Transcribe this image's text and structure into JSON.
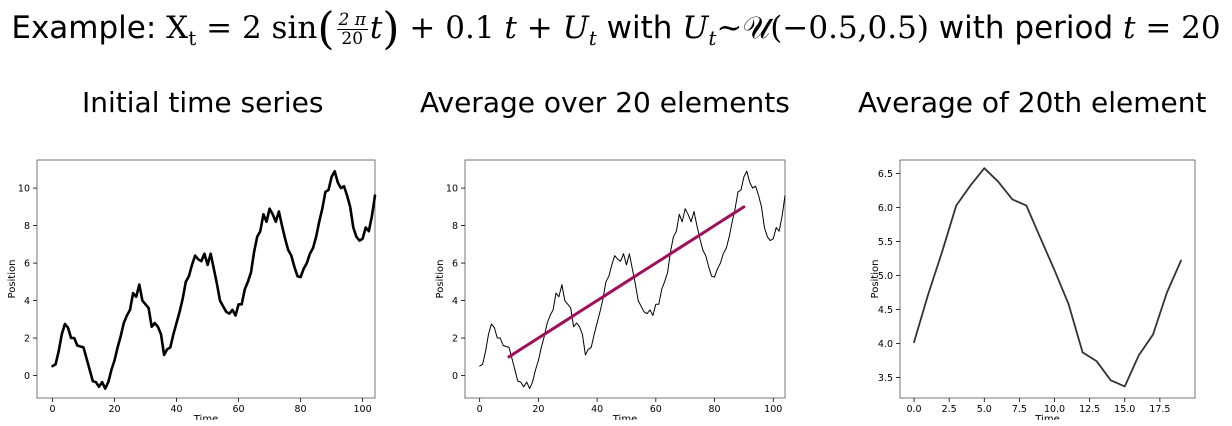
{
  "header": {
    "prefix": "Example: ",
    "xt": "X",
    "xt_sub": "t",
    "eq1": " = 2 sin",
    "frac_num": "2 π",
    "frac_den": "20",
    "t_in_paren": "t",
    "plus": " + 0.1 ",
    "t2": "t",
    "plus2": " + ",
    "u": "U",
    "u_sub": "t",
    "with1": " with ",
    "u2": "U",
    "u2_sub": "t",
    "dist": "~𝒰(−0.5,0.5)",
    "with2": " with period ",
    "t3": "t",
    "eq2": " = 20"
  },
  "panels": [
    {
      "title": "Initial time series"
    },
    {
      "title": "Average over 20 elements"
    },
    {
      "title": "Average of 20th element"
    }
  ],
  "colors": {
    "series": "#000000",
    "moving_average": "#a0105a",
    "avg20": "#333333",
    "axes": "#000000"
  },
  "chart_data": [
    {
      "type": "line",
      "xlabel": "Time",
      "ylabel": "Position",
      "xlim": [
        -5,
        104
      ],
      "ylim": [
        -1.2,
        11.5
      ],
      "xticks": [
        0,
        20,
        40,
        60,
        80,
        100
      ],
      "yticks": [
        0,
        2,
        4,
        6,
        8,
        10
      ],
      "series": [
        {
          "values": [
            0.5,
            0.6,
            1.3,
            2.2,
            2.75,
            2.55,
            2.0,
            2.0,
            1.6,
            1.55,
            1.5,
            0.9,
            0.3,
            -0.3,
            -0.35,
            -0.6,
            -0.35,
            -0.7,
            -0.35,
            0.3,
            0.8,
            1.5,
            2.1,
            2.8,
            3.2,
            3.5,
            4.4,
            4.2,
            4.85,
            4.0,
            3.8,
            3.6,
            2.6,
            2.8,
            2.6,
            2.2,
            1.1,
            1.4,
            1.5,
            2.2,
            2.8,
            3.4,
            4.1,
            5.0,
            5.3,
            5.9,
            6.4,
            6.2,
            6.1,
            6.5,
            5.9,
            6.5,
            5.7,
            4.9,
            4.0,
            3.7,
            3.4,
            3.3,
            3.5,
            3.2,
            3.8,
            3.8,
            4.6,
            5.0,
            5.5,
            6.6,
            7.4,
            7.7,
            8.6,
            8.2,
            8.9,
            8.6,
            8.2,
            8.75,
            8.0,
            7.3,
            6.7,
            6.4,
            5.8,
            5.3,
            5.25,
            5.7,
            6.0,
            6.5,
            6.8,
            7.4,
            8.2,
            8.9,
            9.8,
            9.9,
            10.6,
            10.9,
            10.3,
            10.0,
            10.1,
            9.6,
            9.0,
            7.9,
            7.4,
            7.2,
            7.3,
            7.9,
            7.7,
            8.5,
            9.6
          ]
        }
      ]
    },
    {
      "type": "line",
      "xlabel": "Time",
      "ylabel": "Position",
      "xlim": [
        -5,
        104
      ],
      "ylim": [
        -1.2,
        11.5
      ],
      "xticks": [
        0,
        20,
        40,
        60,
        80,
        100
      ],
      "yticks": [
        0,
        2,
        4,
        6,
        8,
        10
      ],
      "series": [
        {
          "values": [
            0.5,
            0.6,
            1.3,
            2.2,
            2.75,
            2.55,
            2.0,
            2.0,
            1.6,
            1.55,
            1.5,
            0.9,
            0.3,
            -0.3,
            -0.35,
            -0.6,
            -0.35,
            -0.7,
            -0.35,
            0.3,
            0.8,
            1.5,
            2.1,
            2.8,
            3.2,
            3.5,
            4.4,
            4.2,
            4.85,
            4.0,
            3.8,
            3.6,
            2.6,
            2.8,
            2.6,
            2.2,
            1.1,
            1.4,
            1.5,
            2.2,
            2.8,
            3.4,
            4.1,
            5.0,
            5.3,
            5.9,
            6.4,
            6.2,
            6.1,
            6.5,
            5.9,
            6.5,
            5.7,
            4.9,
            4.0,
            3.7,
            3.4,
            3.3,
            3.5,
            3.2,
            3.8,
            3.8,
            4.6,
            5.0,
            5.5,
            6.6,
            7.4,
            7.7,
            8.6,
            8.2,
            8.9,
            8.6,
            8.2,
            8.75,
            8.0,
            7.3,
            6.7,
            6.4,
            5.8,
            5.3,
            5.25,
            5.7,
            6.0,
            6.5,
            6.8,
            7.4,
            8.2,
            8.9,
            9.8,
            9.9,
            10.6,
            10.9,
            10.3,
            10.0,
            10.1,
            9.6,
            9.0,
            7.9,
            7.4,
            7.2,
            7.3,
            7.9,
            7.7,
            8.5,
            9.6
          ]
        },
        {
          "x": [
            10,
            15,
            20,
            25,
            30,
            35,
            40,
            45,
            50,
            55,
            60,
            65,
            70,
            75,
            80,
            85,
            90
          ],
          "values": [
            1.0,
            1.5,
            2.0,
            2.5,
            3.0,
            3.5,
            4.0,
            4.5,
            5.0,
            5.5,
            6.0,
            6.5,
            7.0,
            7.5,
            8.0,
            8.5,
            9.0
          ]
        }
      ]
    },
    {
      "type": "line",
      "xlabel": "Time",
      "ylabel": "Position",
      "xlim": [
        -1,
        20
      ],
      "ylim": [
        3.2,
        6.7
      ],
      "xticks": [
        0.0,
        2.5,
        5.0,
        7.5,
        10.0,
        12.5,
        15.0,
        17.5
      ],
      "yticks": [
        3.5,
        4.0,
        4.5,
        5.0,
        5.5,
        6.0,
        6.5
      ],
      "xtick_labels": [
        "0.0",
        "2.5",
        "5.0",
        "7.5",
        "10.0",
        "12.5",
        "15.0",
        "17.5"
      ],
      "ytick_labels": [
        "3.5",
        "4.0",
        "4.5",
        "5.0",
        "5.5",
        "6.0",
        "6.5"
      ],
      "series": [
        {
          "x": [
            0,
            1,
            2,
            3,
            4,
            5,
            6,
            7,
            8,
            9,
            10,
            11,
            12,
            13,
            14,
            15,
            16,
            17,
            18,
            19
          ],
          "values": [
            4.02,
            4.72,
            5.35,
            6.03,
            6.32,
            6.58,
            6.38,
            6.12,
            6.03,
            5.55,
            5.08,
            4.58,
            3.87,
            3.74,
            3.46,
            3.37,
            3.83,
            4.13,
            4.75,
            5.22
          ]
        }
      ]
    }
  ]
}
